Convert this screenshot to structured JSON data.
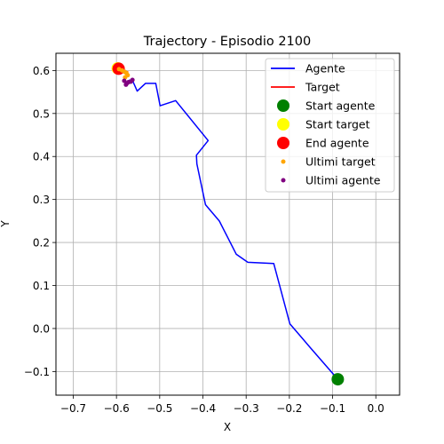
{
  "chart_data": {
    "type": "line",
    "title": "Trajectory - Episodio 2100",
    "xlabel": "X",
    "ylabel": "Y",
    "xlim": [
      -0.74,
      0.055
    ],
    "ylim": [
      -0.155,
      0.64
    ],
    "xticks": [
      -0.7,
      -0.6,
      -0.5,
      -0.4,
      -0.3,
      -0.2,
      -0.1,
      0.0
    ],
    "xtick_labels": [
      "−0.7",
      "−0.6",
      "−0.5",
      "−0.4",
      "−0.3",
      "−0.2",
      "−0.1",
      "0.0"
    ],
    "yticks": [
      -0.1,
      0.0,
      0.1,
      0.2,
      0.3,
      0.4,
      0.5,
      0.6
    ],
    "ytick_labels": [
      "−0.1",
      "0.0",
      "0.1",
      "0.2",
      "0.3",
      "0.4",
      "0.5",
      "0.6"
    ],
    "grid": true,
    "legend_position": "upper right",
    "series": [
      {
        "name": "Agente",
        "kind": "line",
        "color": "#0000ff",
        "x": [
          -0.088,
          -0.152,
          -0.199,
          -0.236,
          -0.296,
          -0.323,
          -0.362,
          -0.394,
          -0.414,
          -0.415,
          -0.388,
          -0.463,
          -0.499,
          -0.509,
          -0.533,
          -0.552,
          -0.562,
          -0.571
        ],
        "y": [
          -0.118,
          -0.044,
          0.011,
          0.151,
          0.154,
          0.173,
          0.25,
          0.288,
          0.383,
          0.403,
          0.437,
          0.53,
          0.518,
          0.57,
          0.57,
          0.552,
          0.575,
          0.578
        ]
      },
      {
        "name": "Target",
        "kind": "line",
        "color": "#ff0000",
        "x": [
          -0.597,
          -0.588,
          -0.585,
          -0.574,
          -0.578
        ],
        "y": [
          0.605,
          0.602,
          0.596,
          0.597,
          0.59
        ]
      },
      {
        "name": "Start agente",
        "kind": "marker",
        "color": "#008000",
        "x": [
          -0.088
        ],
        "y": [
          -0.118
        ]
      },
      {
        "name": "Start target",
        "kind": "marker",
        "color": "#ffff00",
        "x": [
          -0.597
        ],
        "y": [
          0.605
        ]
      },
      {
        "name": "End agente",
        "kind": "marker",
        "color": "#ff0000",
        "x": [
          -0.595
        ],
        "y": [
          0.604
        ]
      },
      {
        "name": "Ultimi target",
        "kind": "scatter",
        "color": "#ffa500",
        "x": [
          -0.594,
          -0.587,
          -0.581,
          -0.577,
          -0.574,
          -0.58
        ],
        "y": [
          0.603,
          0.6,
          0.597,
          0.594,
          0.589,
          0.584
        ]
      },
      {
        "name": "Ultimi agente",
        "kind": "scatter",
        "color": "#800080",
        "x": [
          -0.582,
          -0.576,
          -0.572,
          -0.567,
          -0.563,
          -0.578
        ],
        "y": [
          0.576,
          0.57,
          0.573,
          0.574,
          0.578,
          0.567
        ]
      }
    ]
  }
}
